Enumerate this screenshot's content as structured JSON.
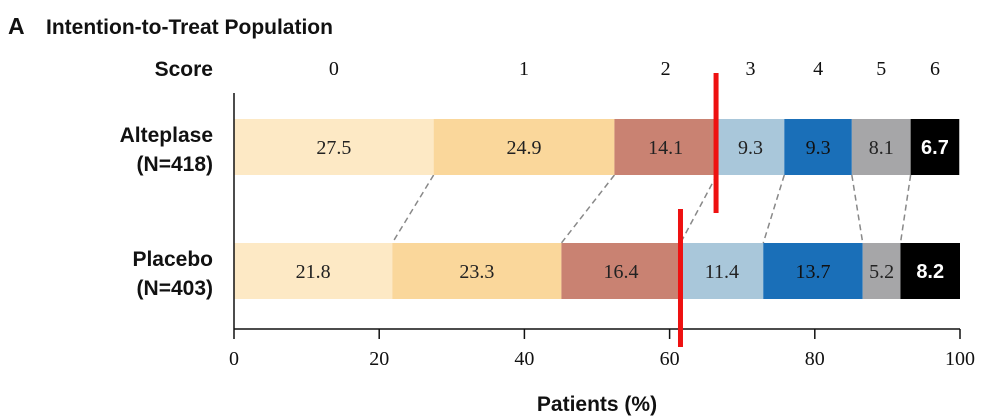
{
  "panel": {
    "letter": "A",
    "title": "Intention-to-Treat Population"
  },
  "chart_data": {
    "type": "bar",
    "orientation": "horizontal-stacked",
    "title": "Intention-to-Treat Population",
    "xlabel": "Patients (%)",
    "xlim": [
      0,
      100
    ],
    "xticks": [
      0,
      20,
      40,
      60,
      80,
      100
    ],
    "score_header": "Score",
    "scores": [
      "0",
      "1",
      "2",
      "3",
      "4",
      "5",
      "6"
    ],
    "colors": [
      "#fde9c5",
      "#fad79b",
      "#c98272",
      "#a9c7da",
      "#1a6fb8",
      "#a6a6a8",
      "#000000"
    ],
    "label_colors": [
      "#222222",
      "#222222",
      "#222222",
      "#222222",
      "#111111",
      "#222222",
      "#ffffff"
    ],
    "groups": [
      {
        "name_line1": "Alteplase",
        "name_line2": "(N=418)",
        "values": [
          27.5,
          24.9,
          14.1,
          9.3,
          9.3,
          8.1,
          6.7
        ],
        "labels": [
          "27.5",
          "24.9",
          "14.1",
          "9.3",
          "9.3",
          "8.1",
          "6.7"
        ]
      },
      {
        "name_line1": "Placebo",
        "name_line2": "(N=403)",
        "values": [
          21.8,
          23.3,
          16.4,
          11.4,
          13.7,
          5.2,
          8.2
        ],
        "labels": [
          "21.8",
          "23.3",
          "16.4",
          "11.4",
          "13.7",
          "5.2",
          "8.2"
        ]
      }
    ],
    "grid": false,
    "legend": "none",
    "annotations": {
      "red_markers_percent": [
        66.4,
        61.5
      ],
      "connector_style": "dashed"
    }
  }
}
